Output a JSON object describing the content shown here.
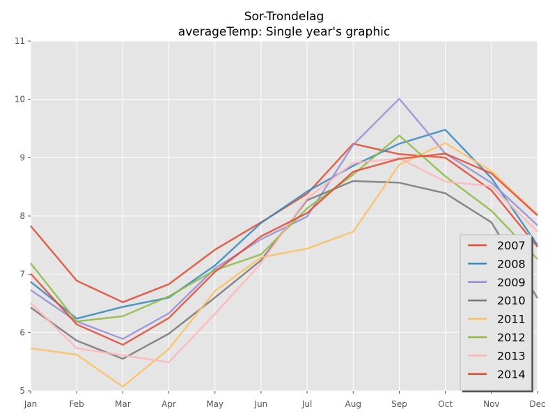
{
  "chart_data": {
    "type": "line",
    "title": "Sor-Trondelag",
    "subtitle": "averageTemp: Single year's graphic",
    "xlabel": "",
    "ylabel": "",
    "categories": [
      "Jan",
      "Feb",
      "Mar",
      "Apr",
      "May",
      "Jun",
      "Jul",
      "Aug",
      "Sep",
      "Oct",
      "Nov",
      "Dec"
    ],
    "ylim": [
      5,
      11
    ],
    "yticks": [
      "5",
      "6",
      "7",
      "8",
      "9",
      "10",
      "11"
    ],
    "grid": true,
    "legend_position": "bottom-right",
    "series": [
      {
        "name": "2007",
        "color": "#e24a33",
        "values": [
          7.83,
          6.89,
          6.52,
          6.83,
          7.42,
          7.89,
          8.38,
          9.24,
          9.06,
          9.0,
          8.44,
          7.47
        ]
      },
      {
        "name": "2008",
        "color": "#348abd",
        "values": [
          6.87,
          6.24,
          6.44,
          6.6,
          7.15,
          7.88,
          8.42,
          8.86,
          9.24,
          9.48,
          8.65,
          7.5
        ]
      },
      {
        "name": "2009",
        "color": "#988ed5",
        "values": [
          6.73,
          6.19,
          5.89,
          6.33,
          7.1,
          7.6,
          7.99,
          9.22,
          10.01,
          9.07,
          8.57,
          7.84
        ]
      },
      {
        "name": "2010",
        "color": "#777777",
        "values": [
          6.43,
          5.86,
          5.55,
          5.98,
          6.6,
          7.24,
          8.27,
          8.6,
          8.57,
          8.39,
          7.89,
          6.59
        ]
      },
      {
        "name": "2011",
        "color": "#fbc15e",
        "values": [
          5.73,
          5.62,
          5.07,
          5.72,
          6.71,
          7.29,
          7.44,
          7.73,
          8.88,
          9.25,
          8.77,
          8.02
        ]
      },
      {
        "name": "2012",
        "color": "#8eba42",
        "values": [
          7.19,
          6.19,
          6.28,
          6.62,
          7.07,
          7.34,
          8.13,
          8.71,
          9.38,
          8.68,
          8.09,
          7.26
        ]
      },
      {
        "name": "2013",
        "color": "#ffb5b8",
        "values": [
          6.51,
          5.73,
          5.61,
          5.49,
          6.32,
          7.19,
          8.3,
          8.91,
          8.99,
          8.59,
          8.51,
          7.73
        ]
      },
      {
        "name": "2014",
        "color": "#e24a33",
        "values": [
          7.01,
          6.14,
          5.79,
          6.25,
          7.04,
          7.65,
          8.05,
          8.76,
          8.98,
          9.07,
          8.73,
          8.01
        ]
      }
    ]
  }
}
